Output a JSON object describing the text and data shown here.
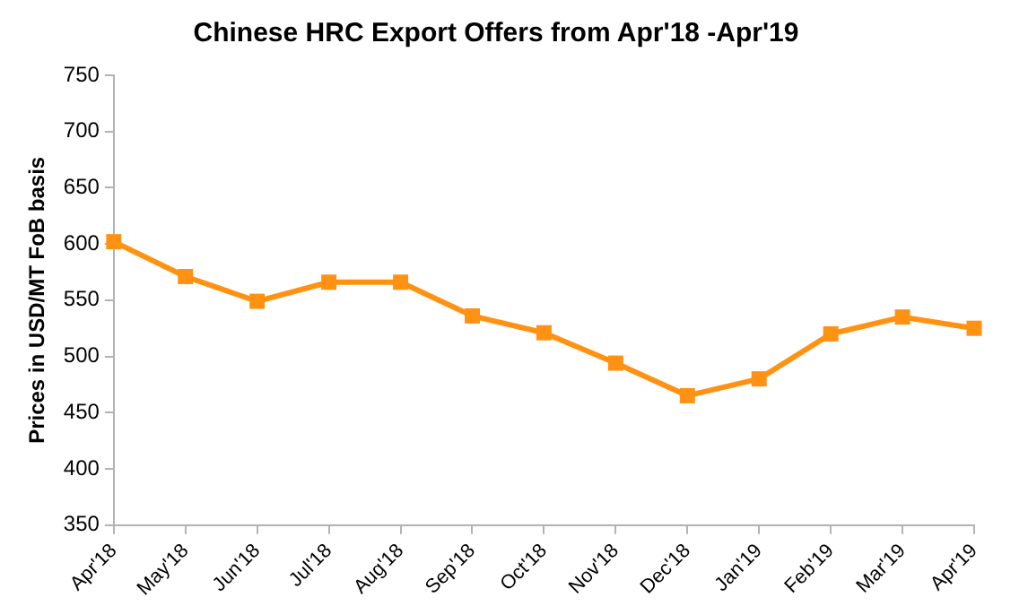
{
  "chart_data": {
    "type": "line",
    "title": "Chinese HRC Export Offers from Apr'18 -Apr'19",
    "ylabel": "Prices in USD/MT FoB basis",
    "categories": [
      "Apr'18",
      "May'18",
      "Jun'18",
      "Jul'18",
      "Aug'18",
      "Sep'18",
      "Oct'18",
      "Nov'18",
      "Dec'18",
      "Jan'19",
      "Feb'19",
      "Mar'19",
      "Apr'19"
    ],
    "series": [
      {
        "color": "#ff9212",
        "values": [
          602,
          571,
          549,
          566,
          566,
          536,
          521,
          494,
          465,
          480,
          520,
          535,
          525
        ]
      }
    ],
    "ylim": [
      350,
      750
    ],
    "yticks": [
      350,
      400,
      450,
      500,
      550,
      600,
      650,
      700,
      750
    ],
    "grid": false,
    "legend": false,
    "marker": "square",
    "line_style": "solid"
  }
}
